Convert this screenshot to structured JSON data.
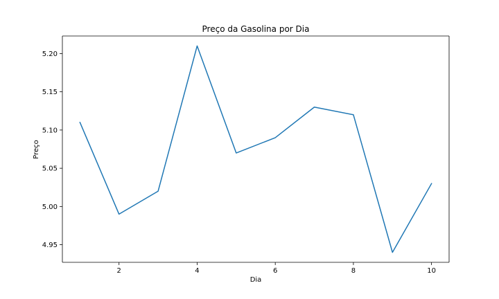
{
  "chart_data": {
    "type": "line",
    "title": "Preço da Gasolina por Dia",
    "xlabel": "Dia",
    "ylabel": "Preço",
    "x": [
      1,
      2,
      3,
      4,
      5,
      6,
      7,
      8,
      9,
      10
    ],
    "series": [
      {
        "values": [
          5.11,
          4.99,
          5.02,
          5.21,
          5.07,
          5.09,
          5.13,
          5.12,
          4.94,
          5.03
        ]
      }
    ],
    "xlim": [
      0.55,
      10.45
    ],
    "ylim": [
      4.927,
      5.223
    ],
    "xticks": [
      2,
      4,
      6,
      8,
      10
    ],
    "xtick_labels": [
      "2",
      "4",
      "6",
      "8",
      "10"
    ],
    "yticks": [
      4.95,
      5.0,
      5.05,
      5.1,
      5.15,
      5.2
    ],
    "ytick_labels": [
      "4.95",
      "5.00",
      "5.05",
      "5.10",
      "5.15",
      "5.20"
    ],
    "grid": false,
    "line_color": "#1f77b4"
  }
}
